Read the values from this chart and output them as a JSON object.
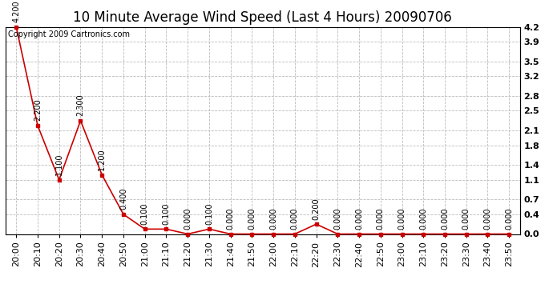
{
  "title": "10 Minute Average Wind Speed (Last 4 Hours) 20090706",
  "copyright_text": "Copyright 2009 Cartronics.com",
  "x_labels": [
    "20:00",
    "20:10",
    "20:20",
    "20:30",
    "20:40",
    "20:50",
    "21:00",
    "21:10",
    "21:20",
    "21:30",
    "21:40",
    "21:50",
    "22:00",
    "22:10",
    "22:20",
    "22:30",
    "22:40",
    "22:50",
    "23:00",
    "23:10",
    "23:20",
    "23:30",
    "23:40",
    "23:50"
  ],
  "y_values": [
    4.2,
    2.2,
    1.1,
    2.3,
    1.2,
    0.4,
    0.1,
    0.1,
    0.0,
    0.1,
    0.0,
    0.0,
    0.0,
    0.0,
    0.2,
    0.0,
    0.0,
    0.0,
    0.0,
    0.0,
    0.0,
    0.0,
    0.0,
    0.0
  ],
  "point_labels": [
    "4.200",
    "2.200",
    "1.100",
    "2.300",
    "1.200",
    "0.400",
    "0.100",
    "0.100",
    "0.000",
    "0.100",
    "0.000",
    "0.000",
    "0.000",
    "0.000",
    "0.200",
    "0.000",
    "0.000",
    "0.000",
    "0.000",
    "0.000",
    "0.000",
    "0.000",
    "0.000",
    "0.000"
  ],
  "ylim": [
    0.0,
    4.2
  ],
  "yticks": [
    0.0,
    0.4,
    0.7,
    1.1,
    1.4,
    1.8,
    2.1,
    2.5,
    2.8,
    3.2,
    3.5,
    3.9,
    4.2
  ],
  "ytick_labels": [
    "0.0",
    "0.4",
    "0.7",
    "1.1",
    "1.4",
    "1.8",
    "2.1",
    "2.5",
    "2.8",
    "3.2",
    "3.5",
    "3.9",
    "4.2"
  ],
  "line_color": "#cc0000",
  "marker_color": "#cc0000",
  "bg_color": "#ffffff",
  "grid_color": "#bbbbbb",
  "title_fontsize": 12,
  "label_fontsize": 8,
  "annotation_fontsize": 7,
  "copyright_fontsize": 7
}
